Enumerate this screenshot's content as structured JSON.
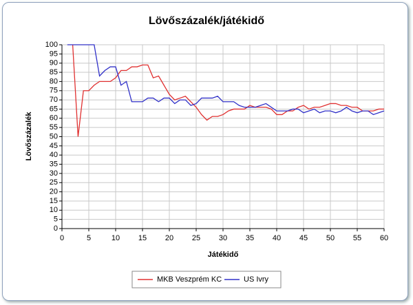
{
  "chart_data": {
    "type": "line",
    "title": "Lövőszázalék/játékidő",
    "x_label": "Játékidő",
    "y_label": "Lövőszázalék",
    "x": [
      1,
      2,
      3,
      4,
      5,
      6,
      7,
      8,
      9,
      10,
      11,
      12,
      13,
      14,
      15,
      16,
      17,
      18,
      19,
      20,
      21,
      22,
      23,
      24,
      25,
      26,
      27,
      28,
      29,
      30,
      31,
      32,
      33,
      34,
      35,
      36,
      37,
      38,
      39,
      40,
      41,
      42,
      43,
      44,
      45,
      46,
      47,
      48,
      49,
      50,
      51,
      52,
      53,
      54,
      55,
      56,
      57,
      58,
      59,
      60
    ],
    "series": [
      {
        "name": "MKB Veszprém KC",
        "color": "#e03030",
        "values": [
          null,
          100,
          50,
          75,
          75,
          78,
          80,
          80,
          80,
          82,
          86,
          86,
          88,
          88,
          89,
          89,
          82,
          83,
          78,
          73,
          70,
          71,
          72,
          69,
          66,
          62,
          59,
          61,
          61,
          62,
          64,
          65,
          65,
          65,
          67,
          66,
          66,
          66,
          65,
          62,
          62,
          64,
          64,
          66,
          67,
          65,
          66,
          66,
          67,
          68,
          68,
          67,
          67,
          66,
          66,
          64,
          64,
          64,
          65,
          65
        ]
      },
      {
        "name": "US Ivry",
        "color": "#3030c8",
        "values": [
          100,
          100,
          100,
          100,
          100,
          100,
          83,
          86,
          88,
          88,
          78,
          80,
          69,
          69,
          69,
          71,
          71,
          69,
          71,
          71,
          68,
          70,
          70,
          67,
          68,
          71,
          71,
          71,
          72,
          69,
          69,
          69,
          67,
          66,
          66,
          66,
          67,
          68,
          66,
          64,
          64,
          64,
          65,
          65,
          63,
          64,
          65,
          63,
          64,
          64,
          63,
          64,
          66,
          64,
          63,
          64,
          64,
          62,
          63,
          64
        ]
      }
    ],
    "xlim": [
      0,
      60
    ],
    "xticks": [
      0,
      5,
      10,
      15,
      20,
      25,
      30,
      35,
      40,
      45,
      50,
      55,
      60
    ],
    "ylim": [
      0,
      100
    ],
    "yticks": [
      0,
      5,
      10,
      15,
      20,
      25,
      30,
      35,
      40,
      45,
      50,
      55,
      60,
      65,
      70,
      75,
      80,
      85,
      90,
      95,
      100
    ],
    "grid": true,
    "legend": "bottom"
  }
}
